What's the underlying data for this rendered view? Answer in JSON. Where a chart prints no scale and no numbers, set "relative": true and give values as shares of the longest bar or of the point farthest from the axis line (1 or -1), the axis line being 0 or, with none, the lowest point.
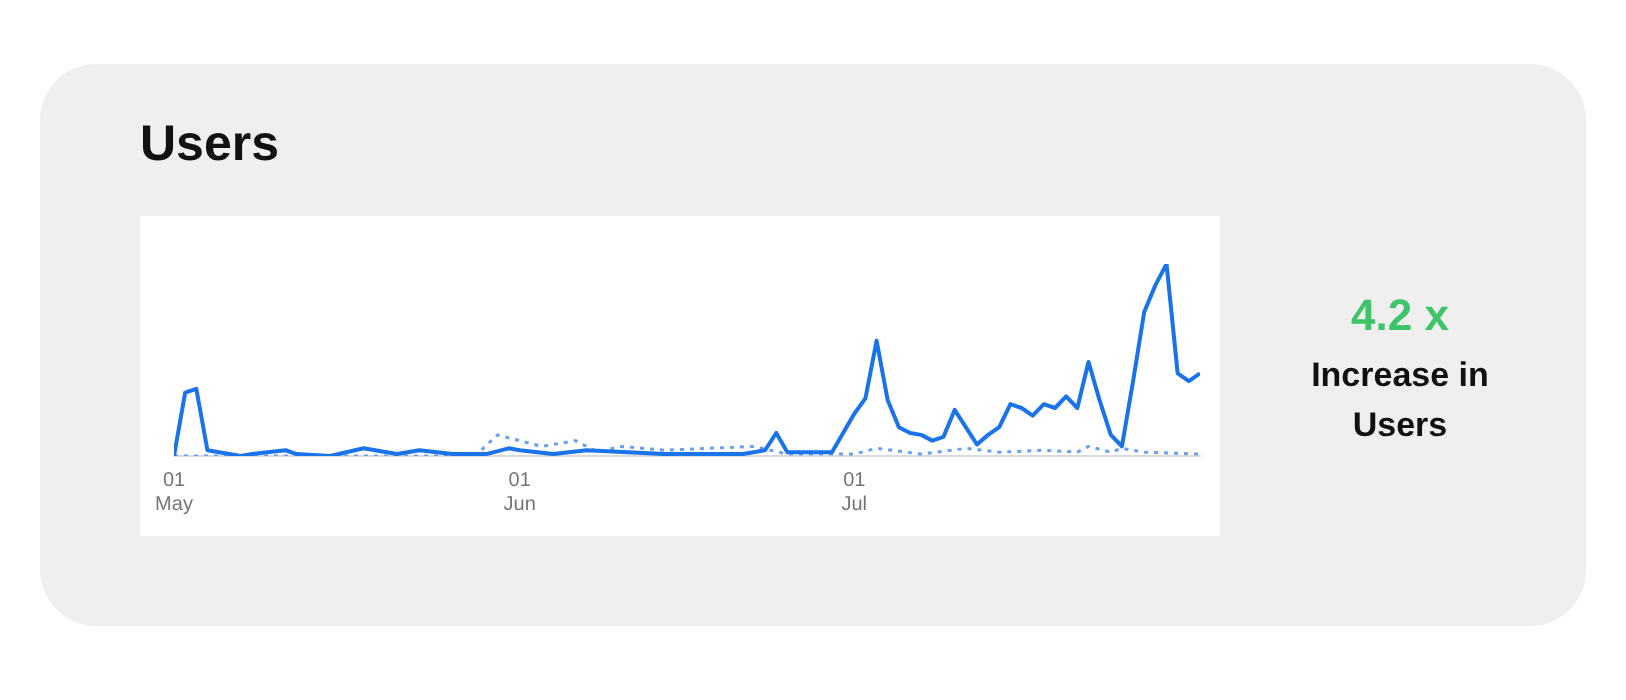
{
  "chart_data": {
    "type": "line",
    "title": "Users",
    "relative": true,
    "xlim": [
      "--05-01",
      "--08-01"
    ],
    "legend": false,
    "marker": "none",
    "xticks": [
      {
        "value": "--05-01",
        "label": "01\nMay"
      },
      {
        "value": "--06-01",
        "label": "01\nJun"
      },
      {
        "value": "--07-01",
        "label": "01\nJul"
      }
    ],
    "series": [
      {
        "color": "#1a73e8",
        "line_style": "solid",
        "x": [
          "--05-01",
          "--05-02",
          "--05-03",
          "--05-04",
          "--05-07",
          "--05-08",
          "--05-11",
          "--05-12",
          "--05-15",
          "--05-18",
          "--05-21",
          "--05-23",
          "--05-26",
          "--05-29",
          "--05-31",
          "--06-01",
          "--06-04",
          "--06-07",
          "--06-14",
          "--06-21",
          "--06-23",
          "--06-24",
          "--06-25",
          "--06-29",
          "--07-01",
          "--07-02",
          "--07-03",
          "--07-04",
          "--07-05",
          "--07-06",
          "--07-07",
          "--07-08",
          "--07-09",
          "--07-10",
          "--07-11",
          "--07-12",
          "--07-13",
          "--07-14",
          "--07-15",
          "--07-16",
          "--07-17",
          "--07-18",
          "--07-19",
          "--07-20",
          "--07-21",
          "--07-22",
          "--07-23",
          "--07-24",
          "--07-25",
          "--07-26",
          "--07-27",
          "--07-28",
          "--07-29",
          "--07-30",
          "--07-31",
          "--08-01"
        ],
        "values": [
          0,
          0.33,
          0.35,
          0.03,
          0,
          0.01,
          0.03,
          0.01,
          0,
          0.04,
          0.01,
          0.03,
          0.01,
          0.01,
          0.04,
          0.03,
          0.01,
          0.03,
          0.01,
          0.01,
          0.03,
          0.12,
          0.02,
          0.02,
          0.22,
          0.3,
          0.6,
          0.29,
          0.15,
          0.12,
          0.11,
          0.08,
          0.1,
          0.24,
          0.15,
          0.06,
          0.11,
          0.15,
          0.27,
          0.25,
          0.21,
          0.27,
          0.25,
          0.31,
          0.25,
          0.49,
          0.29,
          0.11,
          0.05,
          0.39,
          0.75,
          0.89,
          1,
          0.43,
          0.39,
          0.43
        ]
      },
      {
        "color": "#6a9ef0",
        "line_style": "dotted",
        "x": [
          "--05-01",
          "--05-28",
          "--05-30",
          "--06-03",
          "--06-06",
          "--06-08",
          "--06-10",
          "--06-14",
          "--06-22",
          "--06-25",
          "--07-01",
          "--07-03",
          "--07-07",
          "--07-11",
          "--07-14",
          "--07-18",
          "--07-21",
          "--07-22",
          "--07-24",
          "--07-25",
          "--07-27",
          "--08-01"
        ],
        "values": [
          0,
          0,
          0.11,
          0.05,
          0.08,
          0.02,
          0.05,
          0.03,
          0.05,
          0.01,
          0.01,
          0.04,
          0.01,
          0.04,
          0.02,
          0.03,
          0.02,
          0.05,
          0.02,
          0.04,
          0.02,
          0.01
        ]
      }
    ],
    "annotations": [
      "4.2 x",
      "Increase in Users"
    ]
  }
}
